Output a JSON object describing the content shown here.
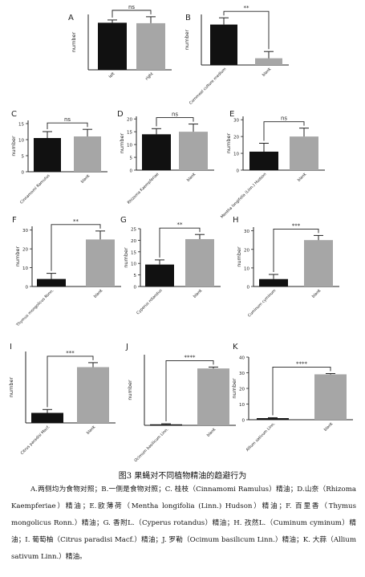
{
  "figure_caption": "图3  果蝇对不同植物精油的趋避行为",
  "legend": "A.两侧均为食物对照；B.一侧是食物对照；C. 桂枝（Cinnamomi Ramulus）精油；D.山奈（Rhizoma Kaempferiae）精油；E.欧薄荷（Mentha longifolia (Linn.) Hudson）精油；F. 百里香（Thymus mongolicus Ronn.）精油；G. 香附L.（Cyperus rotandus）精油；H. 孜然L.（Cuminum cyminum）精油；I. 葡萄柚（Citrus paradisi Macf.）精油；J. 罗勒（Ocimum basilicum Linn.）精油；K. 大蒜（Allium sativum Linn.）精油。",
  "chart_data": [
    {
      "type": "bar",
      "panel": "A",
      "ylabel": "number",
      "yticks": [],
      "ylim": [
        0,
        12
      ],
      "categories": [
        "left",
        "right"
      ],
      "values": [
        10.2,
        10.1
      ],
      "errors": [
        0.6,
        1.4
      ],
      "bar_colors": [
        "#111111",
        "#a6a6a6"
      ],
      "significance": "ns"
    },
    {
      "type": "bar",
      "panel": "B",
      "ylabel": "number",
      "yticks": [],
      "ylim": [
        0,
        30
      ],
      "categories": [
        "Cornmeal culture medium",
        "blank"
      ],
      "values": [
        24,
        4
      ],
      "errors": [
        4,
        4
      ],
      "bar_colors": [
        "#111111",
        "#a6a6a6"
      ],
      "significance": "**"
    },
    {
      "type": "bar",
      "panel": "C",
      "ylabel": "number",
      "yticks": [
        0,
        5,
        10,
        15
      ],
      "ylim": [
        0,
        16
      ],
      "categories": [
        "Cinnamomi Ramulus",
        "blank"
      ],
      "values": [
        10.5,
        11
      ],
      "errors": [
        2,
        2.2
      ],
      "bar_colors": [
        "#111111",
        "#a6a6a6"
      ],
      "significance": "ns"
    },
    {
      "type": "bar",
      "panel": "D",
      "ylabel": "number",
      "yticks": [
        0,
        5,
        10,
        15,
        20
      ],
      "ylim": [
        0,
        21
      ],
      "categories": [
        "Rhizoma Kaempferiae",
        "blank"
      ],
      "values": [
        14,
        15
      ],
      "errors": [
        2.2,
        3
      ],
      "bar_colors": [
        "#111111",
        "#a6a6a6"
      ],
      "significance": "ns"
    },
    {
      "type": "bar",
      "panel": "E",
      "ylabel": "number",
      "yticks": [
        0,
        10,
        20,
        30
      ],
      "ylim": [
        0,
        32
      ],
      "categories": [
        "Mentha longifolia (Linn.) Hudson",
        "blank"
      ],
      "values": [
        11,
        20
      ],
      "errors": [
        5,
        5
      ],
      "bar_colors": [
        "#111111",
        "#a6a6a6"
      ],
      "significance": "ns"
    },
    {
      "type": "bar",
      "panel": "F",
      "ylabel": "number",
      "yticks": [
        0,
        10,
        20,
        30
      ],
      "ylim": [
        0,
        32
      ],
      "categories": [
        "Thymus mongolicus Ronn.",
        "blank"
      ],
      "values": [
        4,
        25
      ],
      "errors": [
        3,
        4.5
      ],
      "bar_colors": [
        "#111111",
        "#a6a6a6"
      ],
      "significance": "**"
    },
    {
      "type": "bar",
      "panel": "G",
      "ylabel": "number",
      "yticks": [
        0,
        5,
        10,
        15,
        20,
        25
      ],
      "ylim": [
        0,
        25
      ],
      "categories": [
        "Cyperus rotandus",
        "blank"
      ],
      "values": [
        9.5,
        20.5
      ],
      "errors": [
        2,
        2
      ],
      "bar_colors": [
        "#111111",
        "#a6a6a6"
      ],
      "significance": "**"
    },
    {
      "type": "bar",
      "panel": "H",
      "ylabel": "number",
      "yticks": [
        0,
        10,
        20,
        30
      ],
      "ylim": [
        0,
        32
      ],
      "categories": [
        "Cuminum cyminum",
        "blank"
      ],
      "values": [
        4,
        25
      ],
      "errors": [
        2.5,
        2.5
      ],
      "bar_colors": [
        "#111111",
        "#a6a6a6"
      ],
      "significance": "***"
    },
    {
      "type": "bar",
      "panel": "I",
      "ylabel": "number",
      "yticks": [],
      "ylim": [
        0,
        32
      ],
      "categories": [
        "Citrus paradisi Macf.",
        "blank"
      ],
      "values": [
        4.5,
        25
      ],
      "errors": [
        1.5,
        2
      ],
      "bar_colors": [
        "#111111",
        "#a6a6a6"
      ],
      "significance": "***"
    },
    {
      "type": "bar",
      "panel": "J",
      "ylabel": "number",
      "yticks": [],
      "ylim": [
        0,
        36
      ],
      "categories": [
        "Ocimum basilicum Linn.",
        "blank"
      ],
      "values": [
        0.5,
        29
      ],
      "errors": [
        0.3,
        0.7
      ],
      "bar_colors": [
        "#111111",
        "#a6a6a6"
      ],
      "significance": "****"
    },
    {
      "type": "bar",
      "panel": "K",
      "ylabel": "number",
      "yticks": [
        0,
        10,
        20,
        30,
        40
      ],
      "ylim": [
        0,
        40
      ],
      "categories": [
        "Allium sativum Linn.",
        "blank"
      ],
      "values": [
        1,
        29
      ],
      "errors": [
        0.3,
        0.5
      ],
      "bar_colors": [
        "#111111",
        "#a6a6a6"
      ],
      "significance": "****"
    }
  ]
}
